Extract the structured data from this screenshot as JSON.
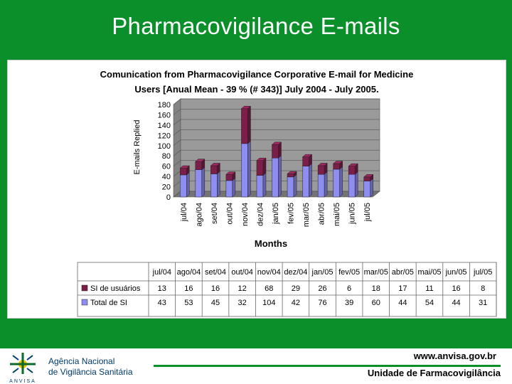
{
  "slide": {
    "title": "Pharmacovigilance E-mails"
  },
  "chart_data": {
    "type": "bar",
    "stacked": true,
    "title_line1": "Comunication from Pharmacovigilance Corporative E-mail for Medicine",
    "title_line2": "Users [Anual Mean - 39 % (# 343)] July 2004 - July 2005.",
    "ylabel": "E-mails Replied",
    "xlabel": "Months",
    "ylim": [
      0,
      180
    ],
    "yticks": [
      0,
      20,
      40,
      60,
      80,
      100,
      120,
      140,
      160,
      180
    ],
    "categories": [
      "jul/04",
      "ago/04",
      "set/04",
      "out/04",
      "nov/04",
      "dez/04",
      "jan/05",
      "fev/05",
      "mar/05",
      "abr/05",
      "mai/05",
      "jun/05",
      "jul/05"
    ],
    "series": [
      {
        "name": "SI de usuários",
        "color": "#7b1f4a",
        "values": [
          13,
          16,
          16,
          12,
          68,
          29,
          26,
          6,
          18,
          17,
          11,
          16,
          8
        ]
      },
      {
        "name": "Total de SI",
        "color": "#8e8ef2",
        "values": [
          43,
          53,
          45,
          32,
          104,
          42,
          76,
          39,
          60,
          44,
          54,
          44,
          31
        ]
      }
    ]
  },
  "footer": {
    "logo_text": "ANVISA",
    "agency_line1": "Agência Nacional",
    "agency_line2": "de Vigilância Sanitária",
    "url": "www.anvisa.gov.br",
    "unit": "Unidade de Farmacovigilância"
  },
  "colors": {
    "background": "#0a8f2a",
    "plot_wall": "#9a9a9a"
  }
}
